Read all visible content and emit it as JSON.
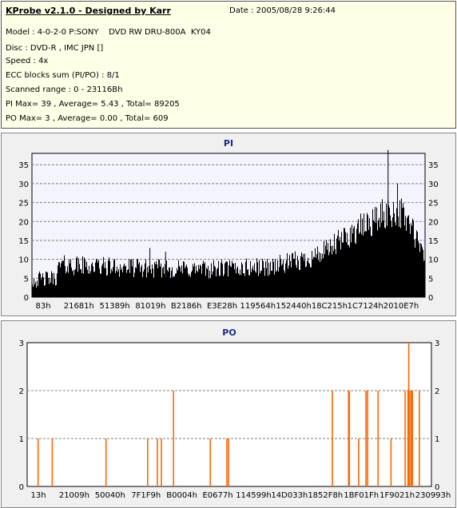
{
  "info": {
    "title": "KProbe v2.1.0 - Designed by Karr",
    "date": "Date : 2005/08/28 9:26:44",
    "lines": [
      "Model : 4-0-2-0 P:SONY    DVD RW DRU-800A  KY04",
      "Disc : DVD-R , IMC JPN []",
      "Speed : 4x",
      "ECC blocks sum (PI/PO) : 8/1",
      "Scanned range : 0 - 23116Bh",
      "PI Max= 39 , Average= 5.43 , Total= 89205",
      "PO Max= 3 , Average= 0.00 , Total= 609"
    ]
  },
  "colors": {
    "pi_bar": "#000000",
    "po_bar": "#ff6600",
    "plot_bg": "#ffffff",
    "pi_plot_bg": "#f4f4ff",
    "grid": "#808080",
    "title": "#1a2b88"
  },
  "chart_data": [
    {
      "type": "bar",
      "title": "PI",
      "ylim": [
        0,
        38
      ],
      "yticks": [
        0,
        5,
        10,
        15,
        20,
        25,
        30,
        35
      ],
      "grid": true,
      "xtick_labels": [
        "83h",
        "21681h",
        "51389h",
        "81019h",
        "B2186h",
        "E3E28h",
        "119564h",
        "152440h",
        "18C215h",
        "1C7124h",
        "2010E7h"
      ],
      "profile": [
        [
          0,
          4.5
        ],
        [
          0.06,
          5.0
        ],
        [
          0.07,
          8.5
        ],
        [
          0.2,
          8.0
        ],
        [
          0.3,
          7.5
        ],
        [
          0.45,
          7.3
        ],
        [
          0.6,
          8.0
        ],
        [
          0.68,
          9.5
        ],
        [
          0.75,
          12
        ],
        [
          0.8,
          16
        ],
        [
          0.85,
          19
        ],
        [
          0.9,
          22
        ],
        [
          0.93,
          23
        ],
        [
          0.96,
          20
        ],
        [
          0.98,
          15
        ],
        [
          1.0,
          10
        ]
      ],
      "noise": 2.6,
      "spikes": [
        [
          0.906,
          39
        ],
        [
          0.93,
          30
        ],
        [
          0.3,
          13
        ],
        [
          0.34,
          12
        ]
      ],
      "max": 39,
      "average": 5.43,
      "total": 89205
    },
    {
      "type": "bar",
      "title": "PO",
      "ylim": [
        0,
        3
      ],
      "yticks": [
        0,
        1,
        2,
        3
      ],
      "grid": true,
      "xtick_labels": [
        "13h",
        "21009h",
        "50040h",
        "7F1F9h",
        "B0004h",
        "E0677h",
        "114599h",
        "14D033h",
        "1852F8h",
        "1BF01Fh",
        "1F9021h",
        "230993h"
      ],
      "events": [
        [
          0.027,
          1
        ],
        [
          0.062,
          1
        ],
        [
          0.195,
          1
        ],
        [
          0.298,
          1
        ],
        [
          0.322,
          1
        ],
        [
          0.332,
          1
        ],
        [
          0.362,
          2
        ],
        [
          0.453,
          1
        ],
        [
          0.494,
          1
        ],
        [
          0.498,
          1
        ],
        [
          0.755,
          2
        ],
        [
          0.795,
          2
        ],
        [
          0.797,
          2
        ],
        [
          0.82,
          1
        ],
        [
          0.838,
          2
        ],
        [
          0.842,
          2
        ],
        [
          0.868,
          2
        ],
        [
          0.9,
          1
        ],
        [
          0.935,
          2
        ],
        [
          0.942,
          2
        ],
        [
          0.944,
          3
        ],
        [
          0.946,
          2
        ],
        [
          0.95,
          2
        ],
        [
          0.953,
          2
        ],
        [
          0.97,
          2
        ]
      ],
      "max": 3,
      "average": 0.0,
      "total": 609
    }
  ]
}
